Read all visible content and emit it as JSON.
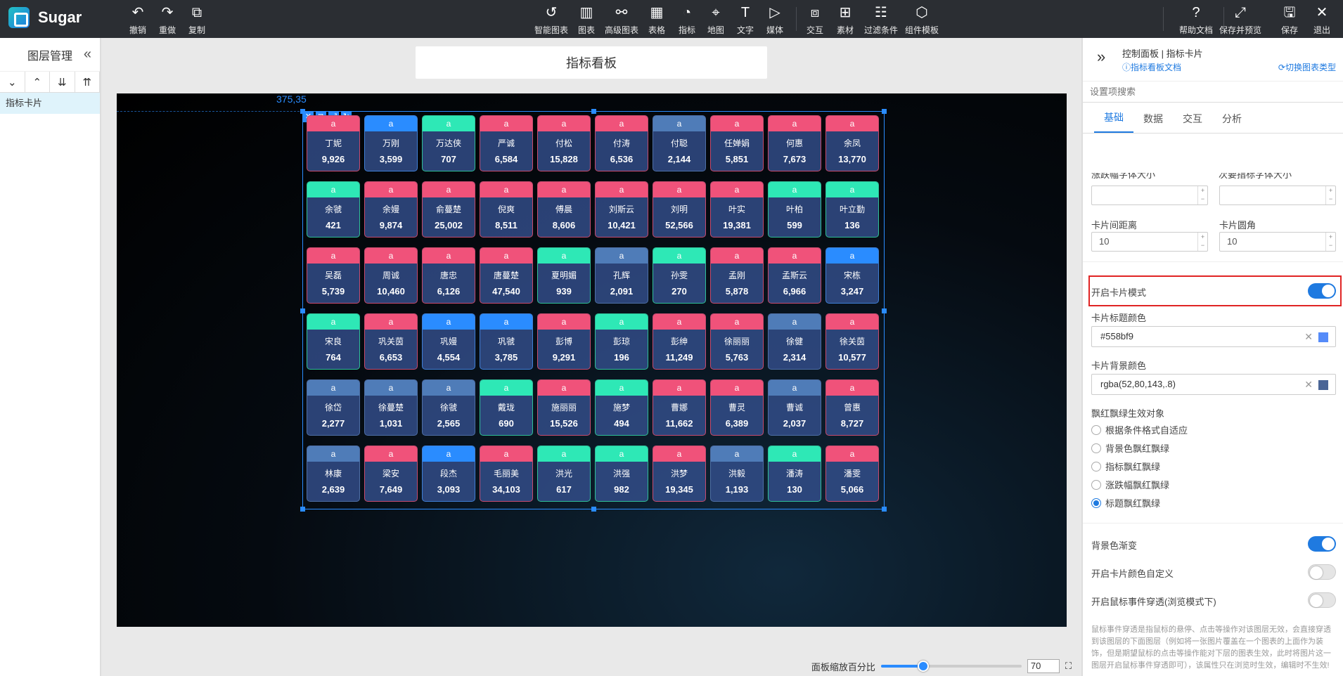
{
  "app": {
    "name": "Sugar"
  },
  "toolbar": {
    "left": [
      {
        "label": "撤销",
        "icon": "undo-icon",
        "glyph": "↶"
      },
      {
        "label": "重做",
        "icon": "redo-icon",
        "glyph": "↷"
      },
      {
        "label": "复制",
        "icon": "copy-icon",
        "glyph": "⧉"
      }
    ],
    "center": [
      {
        "label": "智能图表",
        "icon": "smart-chart-icon",
        "glyph": "↺"
      },
      {
        "label": "图表",
        "icon": "bar-chart-icon",
        "glyph": "▥"
      },
      {
        "label": "高级图表",
        "icon": "advanced-chart-icon",
        "glyph": "⚯"
      },
      {
        "label": "表格",
        "icon": "table-icon",
        "glyph": "▦"
      },
      {
        "label": "指标",
        "icon": "gauge-icon",
        "glyph": "◔"
      },
      {
        "label": "地图",
        "icon": "map-pin-icon",
        "glyph": "⌖"
      },
      {
        "label": "文字",
        "icon": "text-icon",
        "glyph": "T"
      },
      {
        "label": "媒体",
        "icon": "media-icon",
        "glyph": "▷"
      },
      {
        "label": "交互",
        "icon": "interaction-icon",
        "glyph": "⧈"
      },
      {
        "label": "素材",
        "icon": "assets-icon",
        "glyph": "⊞"
      },
      {
        "label": "过滤条件",
        "icon": "filter-icon",
        "glyph": "☷"
      },
      {
        "label": "组件模板",
        "icon": "component-template-icon",
        "glyph": "⬡"
      }
    ],
    "right": [
      {
        "label": "帮助文档",
        "icon": "help-icon",
        "glyph": "?"
      },
      {
        "label": "保存并预览",
        "icon": "expand-icon",
        "glyph": "⤢"
      },
      {
        "label": "保存",
        "icon": "save-icon",
        "glyph": "🖫"
      },
      {
        "label": "退出",
        "icon": "close-icon",
        "glyph": "✕"
      }
    ]
  },
  "layers": {
    "title": "图层管理",
    "items": [
      "指标卡片"
    ]
  },
  "board": {
    "title": "指标看板",
    "coord_text": "375,35"
  },
  "colors": {
    "red": "#f0527a",
    "green": "#2ee8b6",
    "blue": "#2a8cff",
    "steel": "#4f7cb8",
    "card_bg": "rgba(52,80,143,.8)"
  },
  "cards": [
    {
      "t": "a",
      "c": "red",
      "n": "丁妮",
      "v": "9,926"
    },
    {
      "t": "a",
      "c": "blue",
      "n": "万刚",
      "v": "3,599"
    },
    {
      "t": "a",
      "c": "green",
      "n": "万达侠",
      "v": "707"
    },
    {
      "t": "a",
      "c": "red",
      "n": "严诚",
      "v": "6,584"
    },
    {
      "t": "a",
      "c": "red",
      "n": "付松",
      "v": "15,828"
    },
    {
      "t": "a",
      "c": "red",
      "n": "付涛",
      "v": "6,536"
    },
    {
      "t": "a",
      "c": "steel",
      "n": "付聪",
      "v": "2,144"
    },
    {
      "t": "a",
      "c": "red",
      "n": "任婵娟",
      "v": "5,851"
    },
    {
      "t": "a",
      "c": "red",
      "n": "何惠",
      "v": "7,673"
    },
    {
      "t": "a",
      "c": "red",
      "n": "余凤",
      "v": "13,770"
    },
    {
      "t": "a",
      "c": "green",
      "n": "余虢",
      "v": "421"
    },
    {
      "t": "a",
      "c": "red",
      "n": "余嫚",
      "v": "9,874"
    },
    {
      "t": "a",
      "c": "red",
      "n": "俞蔓楚",
      "v": "25,002"
    },
    {
      "t": "a",
      "c": "red",
      "n": "倪爽",
      "v": "8,511"
    },
    {
      "t": "a",
      "c": "red",
      "n": "傅晨",
      "v": "8,606"
    },
    {
      "t": "a",
      "c": "red",
      "n": "刘斯云",
      "v": "10,421"
    },
    {
      "t": "a",
      "c": "red",
      "n": "刘明",
      "v": "52,566"
    },
    {
      "t": "a",
      "c": "red",
      "n": "叶实",
      "v": "19,381"
    },
    {
      "t": "a",
      "c": "green",
      "n": "叶柏",
      "v": "599"
    },
    {
      "t": "a",
      "c": "green",
      "n": "叶立勤",
      "v": "136"
    },
    {
      "t": "a",
      "c": "red",
      "n": "吴磊",
      "v": "5,739"
    },
    {
      "t": "a",
      "c": "red",
      "n": "周诚",
      "v": "10,460"
    },
    {
      "t": "a",
      "c": "red",
      "n": "唐忠",
      "v": "6,126"
    },
    {
      "t": "a",
      "c": "red",
      "n": "唐蔓楚",
      "v": "47,540"
    },
    {
      "t": "a",
      "c": "green",
      "n": "夏明媚",
      "v": "939"
    },
    {
      "t": "a",
      "c": "steel",
      "n": "孔辉",
      "v": "2,091"
    },
    {
      "t": "a",
      "c": "green",
      "n": "孙雯",
      "v": "270"
    },
    {
      "t": "a",
      "c": "red",
      "n": "孟刚",
      "v": "5,878"
    },
    {
      "t": "a",
      "c": "red",
      "n": "孟斯云",
      "v": "6,966"
    },
    {
      "t": "a",
      "c": "blue",
      "n": "宋栋",
      "v": "3,247"
    },
    {
      "t": "a",
      "c": "green",
      "n": "宋良",
      "v": "764"
    },
    {
      "t": "a",
      "c": "red",
      "n": "巩关茵",
      "v": "6,653"
    },
    {
      "t": "a",
      "c": "blue",
      "n": "巩嫚",
      "v": "4,554"
    },
    {
      "t": "a",
      "c": "blue",
      "n": "巩虢",
      "v": "3,785"
    },
    {
      "t": "a",
      "c": "red",
      "n": "彭博",
      "v": "9,291"
    },
    {
      "t": "a",
      "c": "green",
      "n": "彭琼",
      "v": "196"
    },
    {
      "t": "a",
      "c": "red",
      "n": "彭绅",
      "v": "11,249"
    },
    {
      "t": "a",
      "c": "red",
      "n": "徐丽丽",
      "v": "5,763"
    },
    {
      "t": "a",
      "c": "steel",
      "n": "徐健",
      "v": "2,314"
    },
    {
      "t": "a",
      "c": "red",
      "n": "徐关茵",
      "v": "10,577"
    },
    {
      "t": "a",
      "c": "steel",
      "n": "徐岱",
      "v": "2,277"
    },
    {
      "t": "a",
      "c": "steel",
      "n": "徐蔓楚",
      "v": "1,031"
    },
    {
      "t": "a",
      "c": "steel",
      "n": "徐虢",
      "v": "2,565"
    },
    {
      "t": "a",
      "c": "green",
      "n": "戴珑",
      "v": "690"
    },
    {
      "t": "a",
      "c": "red",
      "n": "施丽丽",
      "v": "15,526"
    },
    {
      "t": "a",
      "c": "green",
      "n": "施梦",
      "v": "494"
    },
    {
      "t": "a",
      "c": "red",
      "n": "曹娜",
      "v": "11,662"
    },
    {
      "t": "a",
      "c": "red",
      "n": "曹灵",
      "v": "6,389"
    },
    {
      "t": "a",
      "c": "steel",
      "n": "曹诚",
      "v": "2,037"
    },
    {
      "t": "a",
      "c": "red",
      "n": "曾惠",
      "v": "8,727"
    },
    {
      "t": "a",
      "c": "steel",
      "n": "林康",
      "v": "2,639"
    },
    {
      "t": "a",
      "c": "red",
      "n": "梁安",
      "v": "7,649"
    },
    {
      "t": "a",
      "c": "blue",
      "n": "段杰",
      "v": "3,093"
    },
    {
      "t": "a",
      "c": "red",
      "n": "毛丽美",
      "v": "34,103"
    },
    {
      "t": "a",
      "c": "green",
      "n": "洪光",
      "v": "617"
    },
    {
      "t": "a",
      "c": "green",
      "n": "洪强",
      "v": "982"
    },
    {
      "t": "a",
      "c": "red",
      "n": "洪梦",
      "v": "19,345"
    },
    {
      "t": "a",
      "c": "steel",
      "n": "洪毅",
      "v": "1,193"
    },
    {
      "t": "a",
      "c": "green",
      "n": "潘涛",
      "v": "130"
    },
    {
      "t": "a",
      "c": "red",
      "n": "潘雯",
      "v": "5,066"
    }
  ],
  "zoom": {
    "label": "面板缩放百分比",
    "value": "70",
    "level": 0.3
  },
  "panel": {
    "title": "控制面板 | 指标卡片",
    "doc_link": "指标看板文档",
    "switch_type": "切换图表类型",
    "search_placeholder": "设置项搜索",
    "tabs": [
      "基础",
      "数据",
      "交互",
      "分析"
    ],
    "active_tab": 0,
    "clipped_label_1": "涨跌幅字体大小",
    "clipped_label_2": "次要指标字体大小",
    "card_gap_label": "卡片间距离",
    "card_gap_value": "10",
    "card_radius_label": "卡片圆角",
    "card_radius_value": "10",
    "card_mode_label": "开启卡片模式",
    "card_mode_on": true,
    "title_color_label": "卡片标题颜色",
    "title_color_value": "#558bf9",
    "title_color_swatch": "#558bf9",
    "bg_color_label": "卡片背景颜色",
    "bg_color_value": "rgba(52,80,143,.8)",
    "bg_color_swatch": "#4a6596",
    "redgreen_label": "飘红飘绿生效对象",
    "redgreen_options": [
      "根据条件格式自适应",
      "背景色飘红飘绿",
      "指标飘红飘绿",
      "涨跌幅飘红飘绿",
      "标题飘红飘绿"
    ],
    "redgreen_selected": 4,
    "bg_gradient_label": "背景色渐变",
    "bg_gradient_on": true,
    "custom_color_label": "开启卡片颜色自定义",
    "custom_color_on": false,
    "passthrough_label": "开启鼠标事件穿透(浏览模式下)",
    "passthrough_on": false,
    "note": "鼠标事件穿透是指鼠标的悬停、点击等操作对该图层无效，会直接穿透到该图层的下面图层（例如将一张图片覆盖在一个图表的上面作为装饰，但是期望鼠标的点击等操作能对下层的图表生效，此时将图片这一图层开启鼠标事件穿透即可），该属性只在浏览时生效，编辑时不生效!"
  }
}
